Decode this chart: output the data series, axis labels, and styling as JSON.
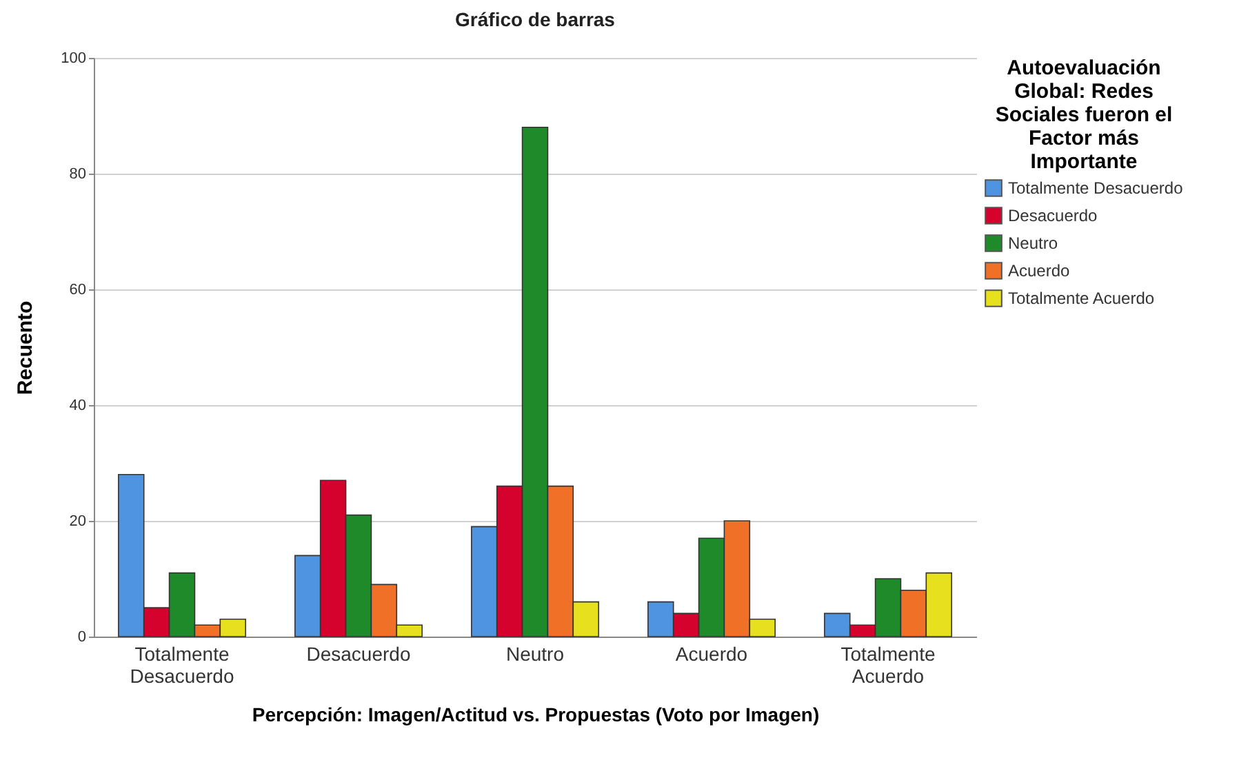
{
  "chart_data": {
    "type": "bar",
    "title": "Gráfico de barras",
    "xlabel": "Percepción: Imagen/Actitud vs. Propuestas (Voto por Imagen)",
    "ylabel": "Recuento",
    "legend_title": "Autoevaluación Global: Redes Sociales fueron el Factor más Importante",
    "categories": [
      "Totalmente Desacuerdo",
      "Desacuerdo",
      "Neutro",
      "Acuerdo",
      "Totalmente Acuerdo"
    ],
    "series": [
      {
        "name": "Totalmente Desacuerdo",
        "color": "#4f94e0",
        "values": [
          28,
          14,
          19,
          6,
          4
        ]
      },
      {
        "name": "Desacuerdo",
        "color": "#d4022c",
        "values": [
          5,
          27,
          26,
          4,
          2
        ]
      },
      {
        "name": "Neutro",
        "color": "#1f8a2a",
        "values": [
          11,
          21,
          88,
          17,
          10
        ]
      },
      {
        "name": "Acuerdo",
        "color": "#f07028",
        "values": [
          2,
          9,
          26,
          20,
          8
        ]
      },
      {
        "name": "Totalmente Acuerdo",
        "color": "#e6e01e",
        "values": [
          3,
          2,
          6,
          3,
          11
        ]
      }
    ],
    "ylim": [
      0,
      100
    ],
    "yticks": [
      0,
      20,
      40,
      60,
      80,
      100
    ],
    "grid": "y",
    "legend": "right"
  }
}
